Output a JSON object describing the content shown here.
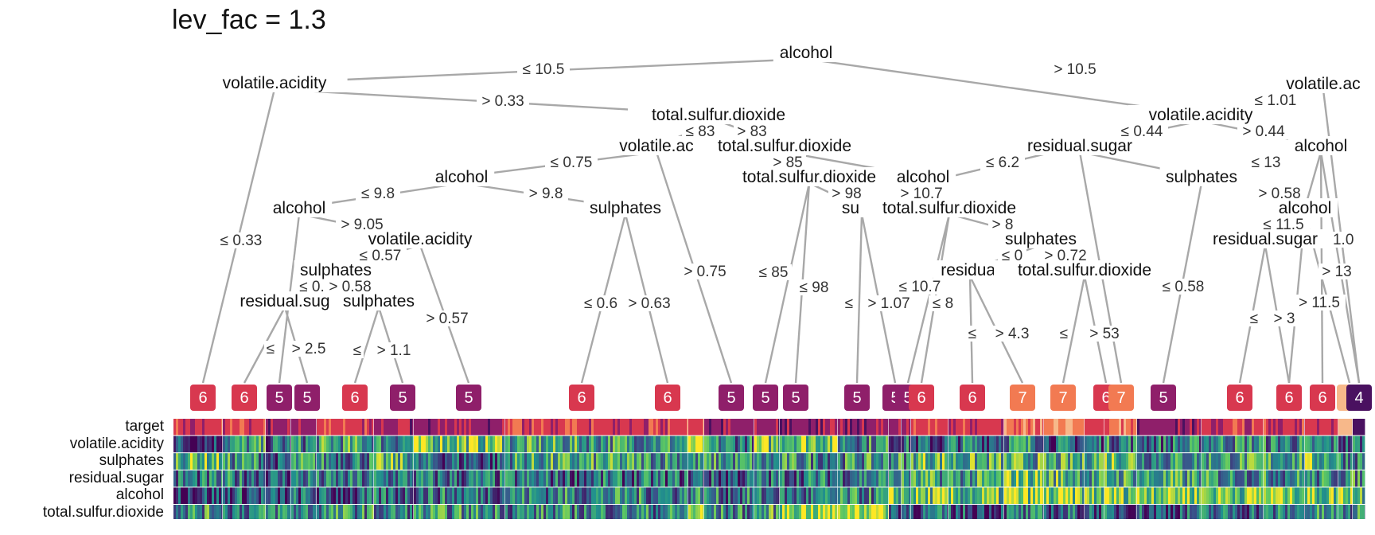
{
  "title": "lev_fac = 1.3",
  "heatmap": {
    "rows": [
      {
        "id": "target",
        "label": "target"
      },
      {
        "id": "va",
        "label": "volatile.acidity"
      },
      {
        "id": "su",
        "label": "sulphates"
      },
      {
        "id": "rs",
        "label": "residual.sugar"
      },
      {
        "id": "al",
        "label": "alcohol"
      },
      {
        "id": "tsd",
        "label": "total.sulfur.dioxide"
      }
    ]
  },
  "colors": {
    "class4": "#4a1160",
    "class5": "#8f1f6a",
    "class6": "#d8384f",
    "class7": "#f27a52",
    "class_light": "#f7b88a",
    "edge": "#a8a8a8",
    "viridis": [
      "#440154",
      "#3b528b",
      "#21908d",
      "#5dc863",
      "#fde725"
    ]
  },
  "tree": {
    "nodes": [
      {
        "id": "root",
        "label": "alcohol"
      },
      {
        "id": "n_va1",
        "label": "volatile.acidity"
      },
      {
        "id": "n_tsd1",
        "label": "total.sulfur.dioxide"
      },
      {
        "id": "n_va2",
        "label": "volatile.ac"
      },
      {
        "id": "n_tsd2",
        "label": "total.sulfur.dioxide"
      },
      {
        "id": "n_alc1",
        "label": "alcohol"
      },
      {
        "id": "n_alc2",
        "label": "alcohol"
      },
      {
        "id": "n_sul1",
        "label": "sulphates"
      },
      {
        "id": "n_va3",
        "label": "volatile.acidity"
      },
      {
        "id": "n_sul2",
        "label": "sulphates"
      },
      {
        "id": "n_rs1",
        "label": "residual.sug"
      },
      {
        "id": "n_sul3",
        "label": "sulphates"
      },
      {
        "id": "n_tsd3",
        "label": "total.sulfur.dioxide"
      },
      {
        "id": "n_alc3",
        "label": "alcohol"
      },
      {
        "id": "n_sul4",
        "label": "sulph"
      },
      {
        "id": "n_tsd4",
        "label": "total.sulfur.dioxide"
      },
      {
        "id": "n_sul5",
        "label": "sulphates"
      },
      {
        "id": "n_rs2",
        "label": "residual"
      },
      {
        "id": "n_tsd5",
        "label": "total.sulfur.dioxide"
      },
      {
        "id": "n_va4",
        "label": "volatile.acidity"
      },
      {
        "id": "n_rs3",
        "label": "residual.sugar"
      },
      {
        "id": "n_va5",
        "label": "volatile.ac"
      },
      {
        "id": "n_sul6",
        "label": "sulphates"
      },
      {
        "id": "n_alc4",
        "label": "alcohol"
      },
      {
        "id": "n_alc5",
        "label": "alcohol"
      },
      {
        "id": "n_rs4",
        "label": "residual.sugar"
      }
    ],
    "split_labels": [
      "≤ 10.5",
      "> 10.5",
      "> 0.33",
      "≤ 0.33",
      "≤ 83",
      "> 83",
      "≤ 0.75",
      "> 0.75",
      "> 85",
      "≤ 9.8",
      "> 9.8",
      "> 9.05",
      "≤ 0.57",
      "> 0.57",
      "≤ 0.",
      "> 0.58",
      "≤",
      "> 2.5",
      "≤",
      "> 1.1",
      "≤ 0.6",
      "> 0.63",
      "≤ 85",
      "≤ 98",
      "> 98",
      "> 10.7",
      "≤ 6.2",
      "> 8",
      "≤",
      "> 1.07",
      "≤ 10.7",
      "≤ 8",
      "≤ 0",
      "> 0.72",
      "≤",
      "> 4.3",
      "≤",
      "> 53",
      "≤ 1.01",
      "> 0.44",
      "≤ 0.44",
      "≤ 13",
      "> 0.58",
      "≤ 11.5",
      "> 1.0",
      "> 13",
      "≤ 0.58",
      "≤",
      "> 3",
      "> 11.5"
    ],
    "leaves": [
      "6",
      "6",
      "5",
      "5",
      "6",
      "5",
      "5",
      "6",
      "6",
      "5",
      "5",
      "5",
      "5",
      "5",
      "5",
      "6",
      "6",
      "7",
      "7",
      "6",
      "7",
      "5",
      "6",
      "6",
      "6",
      "",
      "4"
    ],
    "leaf_classes": [
      6,
      6,
      5,
      5,
      6,
      5,
      5,
      6,
      6,
      5,
      5,
      5,
      5,
      5,
      5,
      6,
      6,
      7,
      7,
      6,
      7,
      5,
      6,
      6,
      6,
      8,
      4
    ]
  }
}
